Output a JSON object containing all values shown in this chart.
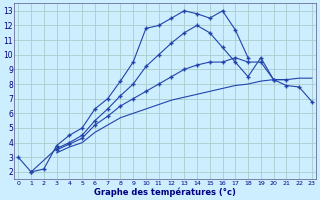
{
  "title": "Graphe des températures (°c)",
  "bg_color": "#cceeff",
  "grid_color": "#aacccc",
  "line_color": "#2244aa",
  "x_hours": [
    0,
    1,
    2,
    3,
    4,
    5,
    6,
    7,
    8,
    9,
    10,
    11,
    12,
    13,
    14,
    15,
    16,
    17,
    18,
    19,
    20,
    21,
    22,
    23
  ],
  "curves": [
    [
      3.0,
      2.0,
      2.2,
      3.8,
      4.5,
      5.0,
      6.3,
      7.0,
      8.2,
      9.5,
      11.8,
      12.0,
      12.5,
      13.0,
      12.8,
      12.5,
      13.0,
      11.7,
      9.8,
      null,
      null,
      null,
      null,
      null
    ],
    [
      null,
      2.0,
      null,
      3.6,
      4.0,
      4.5,
      5.5,
      6.3,
      7.2,
      8.0,
      9.2,
      10.0,
      10.8,
      11.5,
      12.0,
      11.5,
      10.5,
      9.5,
      8.5,
      9.8,
      8.3,
      8.3,
      null,
      null
    ],
    [
      null,
      null,
      null,
      3.5,
      3.9,
      4.3,
      5.2,
      5.8,
      6.5,
      7.0,
      7.5,
      8.0,
      8.5,
      9.0,
      9.3,
      9.5,
      9.5,
      9.8,
      9.5,
      9.5,
      8.3,
      7.9,
      7.8,
      6.8
    ],
    [
      null,
      null,
      null,
      null,
      null,
      null,
      null,
      null,
      null,
      null,
      null,
      null,
      null,
      null,
      null,
      null,
      null,
      null,
      null,
      null,
      null,
      null,
      null,
      null
    ]
  ],
  "line_nomarker": [
    null,
    null,
    null,
    3.3,
    3.7,
    4.0,
    4.7,
    5.2,
    5.7,
    6.0,
    6.3,
    6.6,
    6.9,
    7.1,
    7.3,
    7.5,
    7.7,
    7.9,
    8.0,
    8.2,
    8.3,
    8.3,
    8.4,
    8.4
  ],
  "ylim": [
    1.5,
    13.5
  ],
  "yticks": [
    2,
    3,
    4,
    5,
    6,
    7,
    8,
    9,
    10,
    11,
    12,
    13
  ],
  "xlim": [
    -0.3,
    23.3
  ],
  "xlabel_fontsize": 6.0,
  "tick_fontsize_x": 4.5,
  "tick_fontsize_y": 5.5
}
